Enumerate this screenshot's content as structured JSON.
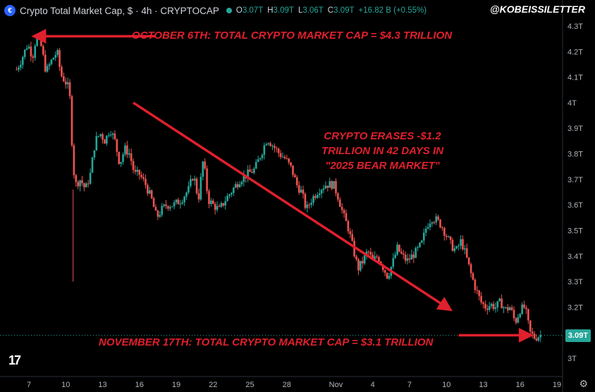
{
  "header": {
    "logo_glyph": "€",
    "title": "Crypto Total Market Cap, $ · 4h · CRYPTOCAP",
    "ohlc": [
      {
        "k": "O",
        "v": "3.07T"
      },
      {
        "k": "H",
        "v": "3.09T"
      },
      {
        "k": "L",
        "v": "3.06T"
      },
      {
        "k": "C",
        "v": "3.09T"
      },
      {
        "k": "",
        "v": "+16.82 B (+0.55%)"
      }
    ]
  },
  "handle": "@KOBEISSILETTER",
  "annotations": {
    "top": "OCTOBER 6TH: TOTAL CRYPTO MARKET CAP = $4.3 TRILLION",
    "middle": "CRYPTO ERASES -$1.2 TRILLION IN 42 DAYS IN \"2025 BEAR MARKET\"",
    "bottom": "NOVEMBER 17TH: TOTAL CRYPTO MARKET CAP = $3.1 TRILLION"
  },
  "price_tag": "3.09T",
  "tv_logo": "17",
  "colors": {
    "up": "#26a69a",
    "down": "#ef5350",
    "annotation": "#e0202c",
    "background": "#000000"
  },
  "chart_data": {
    "type": "candlestick",
    "title": "Crypto Total Market Cap, $ · 4h · CRYPTOCAP",
    "y_ticks": [
      "4.3T",
      "4.2T",
      "4.1T",
      "4T",
      "3.9T",
      "3.8T",
      "3.7T",
      "3.6T",
      "3.5T",
      "3.4T",
      "3.3T",
      "3.2T",
      "3T"
    ],
    "y_tick_values": [
      4.3,
      4.2,
      4.1,
      4.0,
      3.9,
      3.8,
      3.7,
      3.6,
      3.5,
      3.4,
      3.3,
      3.2,
      3.0
    ],
    "ylim": [
      2.97,
      4.33
    ],
    "x_ticks": [
      "7",
      "10",
      "13",
      "16",
      "19",
      "22",
      "25",
      "28",
      "Nov",
      "4",
      "7",
      "10",
      "13",
      "16",
      "19"
    ],
    "x_tick_days": [
      7,
      10,
      13,
      16,
      19,
      22,
      25,
      28,
      32,
      35,
      38,
      41,
      44,
      47,
      50
    ],
    "x_start_day": 6,
    "x_end_day": 48.8,
    "current_price": 3.09,
    "close_path": [
      {
        "d": 6.0,
        "v": 4.13
      },
      {
        "d": 6.4,
        "v": 4.17
      },
      {
        "d": 6.9,
        "v": 4.23
      },
      {
        "d": 7.3,
        "v": 4.18
      },
      {
        "d": 7.6,
        "v": 4.26
      },
      {
        "d": 8.0,
        "v": 4.22
      },
      {
        "d": 8.4,
        "v": 4.12
      },
      {
        "d": 8.9,
        "v": 4.17
      },
      {
        "d": 9.3,
        "v": 4.2
      },
      {
        "d": 9.6,
        "v": 4.11
      },
      {
        "d": 10.0,
        "v": 4.08
      },
      {
        "d": 10.3,
        "v": 4.05
      },
      {
        "d": 10.6,
        "v": 3.75
      },
      {
        "d": 10.8,
        "v": 3.68
      },
      {
        "d": 11.2,
        "v": 3.7
      },
      {
        "d": 11.6,
        "v": 3.66
      },
      {
        "d": 12.0,
        "v": 3.72
      },
      {
        "d": 12.4,
        "v": 3.85
      },
      {
        "d": 12.8,
        "v": 3.88
      },
      {
        "d": 13.2,
        "v": 3.85
      },
      {
        "d": 13.6,
        "v": 3.9
      },
      {
        "d": 14.0,
        "v": 3.85
      },
      {
        "d": 14.4,
        "v": 3.76
      },
      {
        "d": 14.8,
        "v": 3.82
      },
      {
        "d": 15.2,
        "v": 3.8
      },
      {
        "d": 15.6,
        "v": 3.72
      },
      {
        "d": 16.0,
        "v": 3.72
      },
      {
        "d": 16.5,
        "v": 3.68
      },
      {
        "d": 17.0,
        "v": 3.62
      },
      {
        "d": 17.4,
        "v": 3.55
      },
      {
        "d": 17.8,
        "v": 3.58
      },
      {
        "d": 18.2,
        "v": 3.6
      },
      {
        "d": 18.8,
        "v": 3.6
      },
      {
        "d": 19.4,
        "v": 3.62
      },
      {
        "d": 20.0,
        "v": 3.66
      },
      {
        "d": 20.4,
        "v": 3.72
      },
      {
        "d": 20.8,
        "v": 3.62
      },
      {
        "d": 21.2,
        "v": 3.78
      },
      {
        "d": 21.6,
        "v": 3.62
      },
      {
        "d": 22.0,
        "v": 3.6
      },
      {
        "d": 22.5,
        "v": 3.58
      },
      {
        "d": 23.0,
        "v": 3.62
      },
      {
        "d": 23.6,
        "v": 3.66
      },
      {
        "d": 24.2,
        "v": 3.7
      },
      {
        "d": 24.8,
        "v": 3.72
      },
      {
        "d": 25.4,
        "v": 3.74
      },
      {
        "d": 25.9,
        "v": 3.8
      },
      {
        "d": 26.4,
        "v": 3.86
      },
      {
        "d": 26.9,
        "v": 3.83
      },
      {
        "d": 27.4,
        "v": 3.8
      },
      {
        "d": 27.9,
        "v": 3.78
      },
      {
        "d": 28.4,
        "v": 3.74
      },
      {
        "d": 28.8,
        "v": 3.68
      },
      {
        "d": 29.2,
        "v": 3.65
      },
      {
        "d": 29.6,
        "v": 3.58
      },
      {
        "d": 30.0,
        "v": 3.62
      },
      {
        "d": 30.6,
        "v": 3.66
      },
      {
        "d": 31.2,
        "v": 3.68
      },
      {
        "d": 31.8,
        "v": 3.68
      },
      {
        "d": 32.2,
        "v": 3.63
      },
      {
        "d": 32.6,
        "v": 3.56
      },
      {
        "d": 33.0,
        "v": 3.51
      },
      {
        "d": 33.4,
        "v": 3.43
      },
      {
        "d": 33.8,
        "v": 3.35
      },
      {
        "d": 34.2,
        "v": 3.38
      },
      {
        "d": 34.6,
        "v": 3.42
      },
      {
        "d": 35.0,
        "v": 3.38
      },
      {
        "d": 35.4,
        "v": 3.4
      },
      {
        "d": 35.8,
        "v": 3.36
      },
      {
        "d": 36.2,
        "v": 3.32
      },
      {
        "d": 36.6,
        "v": 3.37
      },
      {
        "d": 37.0,
        "v": 3.43
      },
      {
        "d": 37.4,
        "v": 3.4
      },
      {
        "d": 37.8,
        "v": 3.38
      },
      {
        "d": 38.2,
        "v": 3.4
      },
      {
        "d": 38.6,
        "v": 3.42
      },
      {
        "d": 39.0,
        "v": 3.45
      },
      {
        "d": 39.4,
        "v": 3.52
      },
      {
        "d": 39.8,
        "v": 3.55
      },
      {
        "d": 40.2,
        "v": 3.54
      },
      {
        "d": 40.6,
        "v": 3.52
      },
      {
        "d": 41.0,
        "v": 3.48
      },
      {
        "d": 41.4,
        "v": 3.44
      },
      {
        "d": 41.8,
        "v": 3.42
      },
      {
        "d": 42.2,
        "v": 3.46
      },
      {
        "d": 42.6,
        "v": 3.4
      },
      {
        "d": 43.0,
        "v": 3.33
      },
      {
        "d": 43.4,
        "v": 3.27
      },
      {
        "d": 43.8,
        "v": 3.22
      },
      {
        "d": 44.2,
        "v": 3.2
      },
      {
        "d": 44.6,
        "v": 3.21
      },
      {
        "d": 45.0,
        "v": 3.2
      },
      {
        "d": 45.4,
        "v": 3.22
      },
      {
        "d": 45.8,
        "v": 3.19
      },
      {
        "d": 46.2,
        "v": 3.2
      },
      {
        "d": 46.6,
        "v": 3.14
      },
      {
        "d": 47.0,
        "v": 3.19
      },
      {
        "d": 47.4,
        "v": 3.2
      },
      {
        "d": 47.8,
        "v": 3.1
      },
      {
        "d": 48.2,
        "v": 3.08
      },
      {
        "d": 48.6,
        "v": 3.09
      }
    ],
    "wick_spike": {
      "d": 10.6,
      "low": 3.3
    },
    "trend_arrow": {
      "from": {
        "d": 15.5,
        "v": 4.0
      },
      "to": {
        "d": 41.0,
        "v": 3.2
      }
    },
    "top_arrow": {
      "from": {
        "d": 17.3,
        "v": 4.26
      },
      "to": {
        "d": 7.8,
        "v": 4.26
      }
    },
    "bottom_arrow": {
      "from": {
        "d": 42.0,
        "v": 3.09
      },
      "to": {
        "d": 47.5,
        "v": 3.09
      }
    }
  }
}
